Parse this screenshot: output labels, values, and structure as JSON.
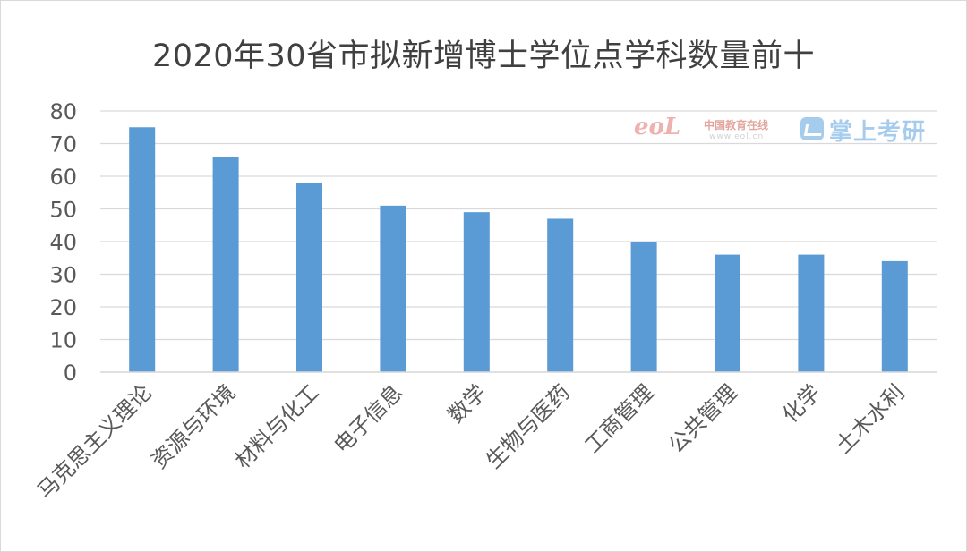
{
  "chart_data": {
    "type": "bar",
    "title": "2020年30省市拟新增博士学位点学科数量前十",
    "categories": [
      "马克思主义理论",
      "资源与环境",
      "材料与化工",
      "电子信息",
      "数学",
      "生物与医药",
      "工商管理",
      "公共管理",
      "化学",
      "土木水利"
    ],
    "values": [
      75,
      66,
      58,
      51,
      49,
      47,
      40,
      36,
      36,
      34
    ],
    "yticks": [
      0,
      10,
      20,
      30,
      40,
      50,
      60,
      70,
      80
    ],
    "ylim": [
      0,
      80
    ],
    "grid": true,
    "legend": "none",
    "colors": {
      "bar": "#5b9bd5",
      "grid": "#d9d9d9",
      "text": "#595959",
      "title": "#404040"
    }
  },
  "watermark": {
    "eol": "eoL",
    "cn_name": "中国教育在线",
    "url": "www.eol.cn",
    "brand": "掌上考研"
  }
}
